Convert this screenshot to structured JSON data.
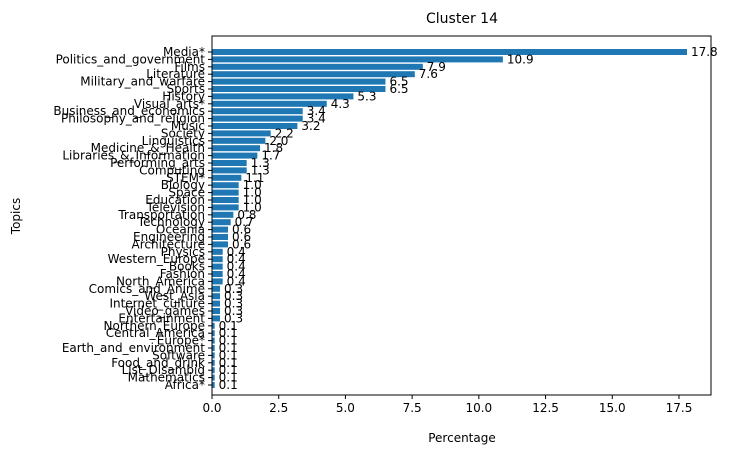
{
  "chart_data": {
    "type": "bar",
    "orientation": "horizontal",
    "title": "Cluster 14",
    "xlabel": "Percentage",
    "ylabel": "Topics",
    "xlim": [
      0,
      18.7
    ],
    "xticks": [
      0.0,
      2.5,
      5.0,
      7.5,
      10.0,
      12.5,
      15.0,
      17.5
    ],
    "xtick_labels": [
      "0.0",
      "2.5",
      "5.0",
      "7.5",
      "10.0",
      "12.5",
      "15.0",
      "17.5"
    ],
    "grid": false,
    "bar_color": "#1f77b4",
    "categories": [
      "Media*",
      "Politics_and_government",
      "Films",
      "Literature",
      "Military_and_warfare",
      "Sports",
      "History",
      "Visual_arts*",
      "Business_and_economics",
      "Philosophy_and_religion",
      "Music",
      "Society",
      "Linguistics",
      "Medicine_&_Health",
      "Libraries_&_Information",
      "Performing_arts",
      "Computing",
      "STEM*",
      "Biology",
      "Space",
      "Education",
      "Television",
      "Transportation",
      "Technology",
      "Oceania",
      "Engineering",
      "Architecture",
      "Physics",
      "Western_Europe",
      "Books",
      "Fashion",
      "North_America",
      "Comics_and_Anime",
      "West_Asia",
      "Internet_culture",
      "Video_games",
      "Entertainment",
      "Northern_Europe",
      "Central_America",
      "Europe*",
      "Earth_and_environment",
      "Software",
      "Food_and_drink",
      "List_Disambig",
      "Mathematics",
      "Africa*"
    ],
    "values": [
      17.8,
      10.9,
      7.9,
      7.6,
      6.5,
      6.5,
      5.3,
      4.3,
      3.4,
      3.4,
      3.2,
      2.2,
      2.0,
      1.8,
      1.7,
      1.3,
      1.3,
      1.1,
      1.0,
      1.0,
      1.0,
      1.0,
      0.8,
      0.7,
      0.6,
      0.6,
      0.6,
      0.4,
      0.4,
      0.4,
      0.4,
      0.4,
      0.3,
      0.3,
      0.3,
      0.3,
      0.3,
      0.1,
      0.1,
      0.1,
      0.1,
      0.1,
      0.1,
      0.1,
      0.1,
      0.1
    ],
    "value_labels": [
      "17.8",
      "10.9",
      "7.9",
      "7.6",
      "6.5",
      "6.5",
      "5.3",
      "4.3",
      "3.4",
      "3.4",
      "3.2",
      "2.2",
      "2.0",
      "1.8",
      "1.7",
      "1.3",
      "1.3",
      "1.1",
      "1.0",
      "1.0",
      "1.0",
      "1.0",
      "0.8",
      "0.7",
      "0.6",
      "0.6",
      "0.6",
      "0.4",
      "0.4",
      "0.4",
      "0.4",
      "0.4",
      "0.3",
      "0.3",
      "0.3",
      "0.3",
      "0.3",
      "0.1",
      "0.1",
      "0.1",
      "0.1",
      "0.1",
      "0.1",
      "0.1",
      "0.1",
      "0.1"
    ]
  }
}
